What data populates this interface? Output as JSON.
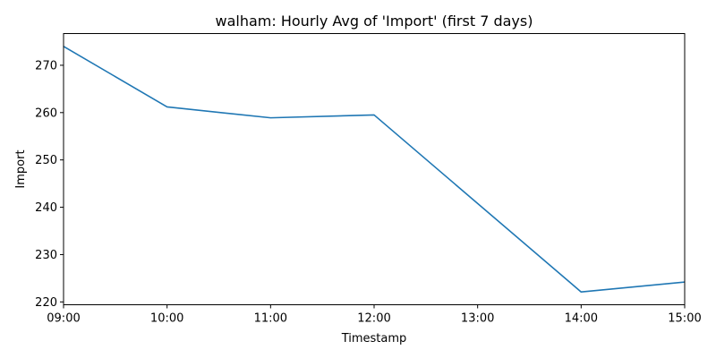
{
  "chart_data": {
    "type": "line",
    "title": "walham: Hourly Avg of 'Import' (first 7 days)",
    "xlabel": "Timestamp",
    "ylabel": "Import",
    "x_ticks": [
      "09:00",
      "10:00",
      "11:00",
      "12:00",
      "13:00",
      "14:00",
      "15:00"
    ],
    "y_ticks": [
      220,
      230,
      240,
      250,
      260,
      270
    ],
    "xlim": [
      "09:00",
      "15:00"
    ],
    "ylim": [
      219.4,
      276.7
    ],
    "grid": false,
    "legend": "none",
    "series": [
      {
        "color": "#1f77b4",
        "points": [
          {
            "x": "09:00",
            "y": 274.0
          },
          {
            "x": "10:00",
            "y": 261.2
          },
          {
            "x": "11:00",
            "y": 258.9
          },
          {
            "x": "12:00",
            "y": 259.5
          },
          {
            "x": "14:00",
            "y": 222.1
          },
          {
            "x": "15:00",
            "y": 224.2
          }
        ]
      }
    ]
  }
}
